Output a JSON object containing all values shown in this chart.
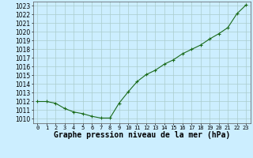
{
  "hours": [
    0,
    1,
    2,
    3,
    4,
    5,
    6,
    7,
    8,
    9,
    10,
    11,
    12,
    13,
    14,
    15,
    16,
    17,
    18,
    19,
    20,
    21,
    22,
    23
  ],
  "pressure": [
    1012.0,
    1012.0,
    1011.8,
    1011.2,
    1010.8,
    1010.6,
    1010.3,
    1010.1,
    1010.1,
    1011.8,
    1013.1,
    1014.3,
    1015.1,
    1015.6,
    1016.3,
    1016.8,
    1017.5,
    1018.0,
    1018.5,
    1019.2,
    1019.8,
    1020.5,
    1022.1,
    1023.1
  ],
  "line_color": "#1a6b1a",
  "marker": "+",
  "marker_size": 3,
  "background_color": "#cceeff",
  "grid_color": "#aacccc",
  "xlabel": "Graphe pression niveau de la mer (hPa)",
  "xlabel_fontsize": 7,
  "ylabel_fontsize": 5.5,
  "xtick_fontsize": 5,
  "ytick_min": 1010,
  "ytick_max": 1023,
  "ytick_step": 1,
  "xtick_labels": [
    "0",
    "1",
    "2",
    "3",
    "4",
    "5",
    "6",
    "7",
    "8",
    "9",
    "10",
    "11",
    "12",
    "13",
    "14",
    "15",
    "16",
    "17",
    "18",
    "19",
    "20",
    "21",
    "22",
    "23"
  ]
}
